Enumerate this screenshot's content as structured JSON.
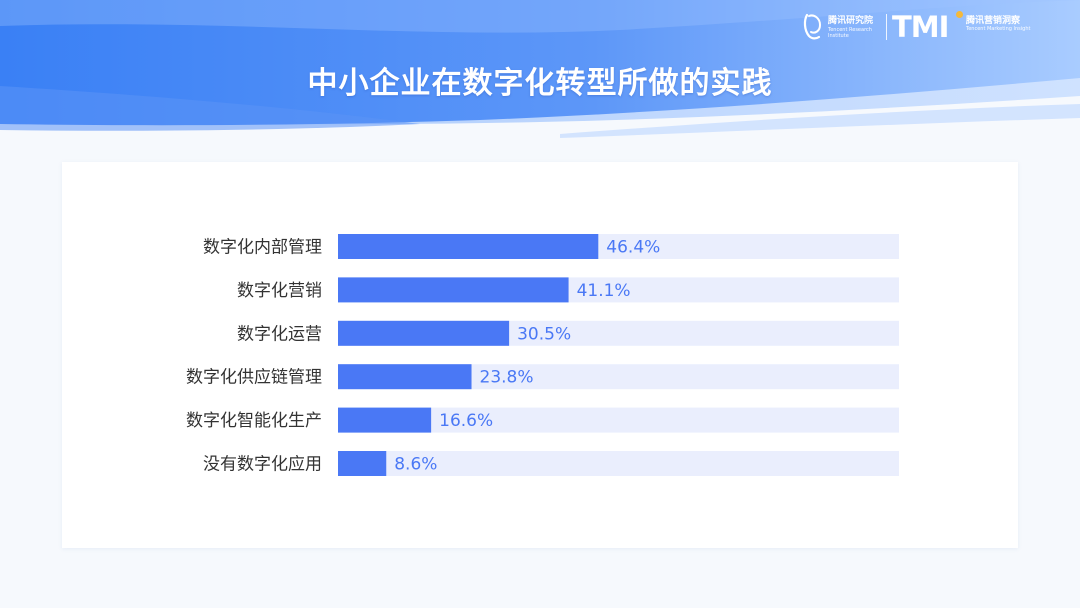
{
  "page": {
    "title": "中小企业在数字化转型所做的实践"
  },
  "logos": {
    "tri": {
      "name_cn": "腾讯研究院",
      "name_en": "Tencent Research Institute"
    },
    "tmi": {
      "mark": "TMI",
      "name_cn": "腾讯营销洞察",
      "name_en": "Tencent Marketing Insight"
    }
  },
  "colors": {
    "header_dark": "#3f86f6",
    "header_light": "#9cc4ff",
    "bar_fill": "#4a78f5",
    "bar_track": "#eaeefd",
    "value_text": "#4a78f5",
    "category_text": "#333333"
  },
  "chart_data": {
    "type": "bar",
    "orientation": "horizontal",
    "categories": [
      "数字化内部管理",
      "数字化营销",
      "数字化运营",
      "数字化供应链管理",
      "数字化智能化生产",
      "没有数字化应用"
    ],
    "values": [
      46.4,
      41.1,
      30.5,
      23.8,
      16.6,
      8.6
    ],
    "value_labels": [
      "46.4%",
      "41.1%",
      "30.5%",
      "23.8%",
      "16.6%",
      "8.6%"
    ],
    "unit": "%",
    "xlim": [
      0,
      100
    ],
    "grid": false,
    "legend": "none"
  }
}
